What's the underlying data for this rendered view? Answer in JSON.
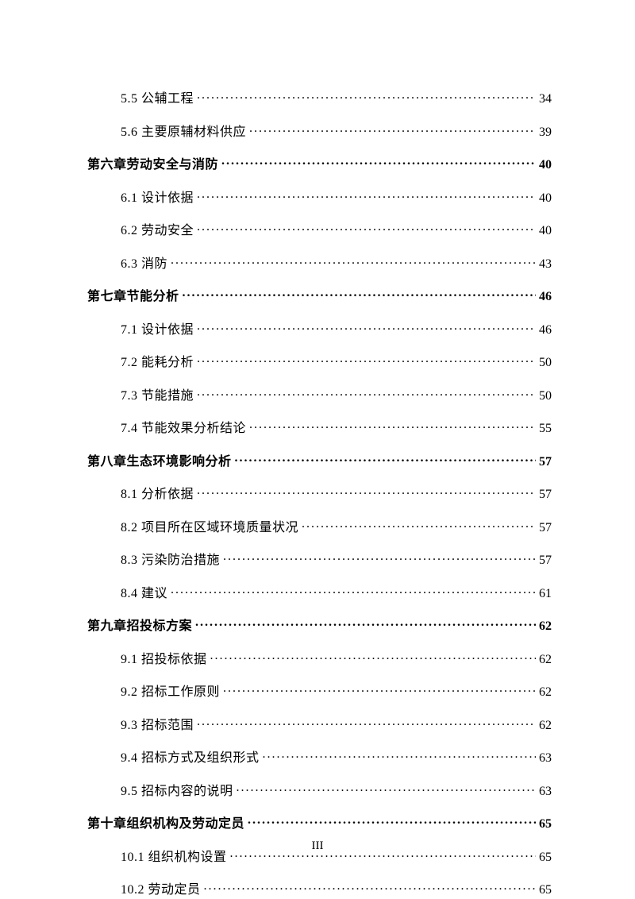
{
  "entries": [
    {
      "level": "section",
      "label": "5.5 公辅工程",
      "page": "34"
    },
    {
      "level": "section",
      "label": "5.6 主要原辅材料供应",
      "page": "39"
    },
    {
      "level": "chapter",
      "label": "第六章劳动安全与消防",
      "page": "40"
    },
    {
      "level": "section",
      "label": "6.1 设计依据",
      "page": "40"
    },
    {
      "level": "section",
      "label": "6.2 劳动安全",
      "page": "40"
    },
    {
      "level": "section",
      "label": "6.3 消防",
      "page": "43"
    },
    {
      "level": "chapter",
      "label": "第七章节能分析",
      "page": "46"
    },
    {
      "level": "section",
      "label": "7.1 设计依据",
      "page": "46"
    },
    {
      "level": "section",
      "label": "7.2 能耗分析",
      "page": "50"
    },
    {
      "level": "section",
      "label": "7.3 节能措施",
      "page": "50"
    },
    {
      "level": "section",
      "label": "7.4 节能效果分析结论",
      "page": "55"
    },
    {
      "level": "chapter",
      "label": "第八章生态环境影响分析",
      "page": "57"
    },
    {
      "level": "section",
      "label": "8.1 分析依据",
      "page": "57"
    },
    {
      "level": "section",
      "label": "8.2 项目所在区域环境质量状况",
      "page": "57"
    },
    {
      "level": "section",
      "label": "8.3 污染防治措施",
      "page": "57"
    },
    {
      "level": "section",
      "label": "8.4 建议",
      "page": "61"
    },
    {
      "level": "chapter",
      "label": "第九章招投标方案",
      "page": "62"
    },
    {
      "level": "section",
      "label": "9.1 招投标依据",
      "page": "62"
    },
    {
      "level": "section",
      "label": "9.2 招标工作原则",
      "page": "62"
    },
    {
      "level": "section",
      "label": "9.3 招标范围",
      "page": "62"
    },
    {
      "level": "section",
      "label": "9.4 招标方式及组织形式",
      "page": "63"
    },
    {
      "level": "section",
      "label": "9.5 招标内容的说明",
      "page": "63"
    },
    {
      "level": "chapter",
      "label": "第十章组织机构及劳动定员",
      "page": "65"
    },
    {
      "level": "section",
      "label": "10.1 组织机构设置",
      "page": "65"
    },
    {
      "level": "section",
      "label": "10.2 劳动定员",
      "page": "65"
    }
  ],
  "footer_page_label": "III"
}
